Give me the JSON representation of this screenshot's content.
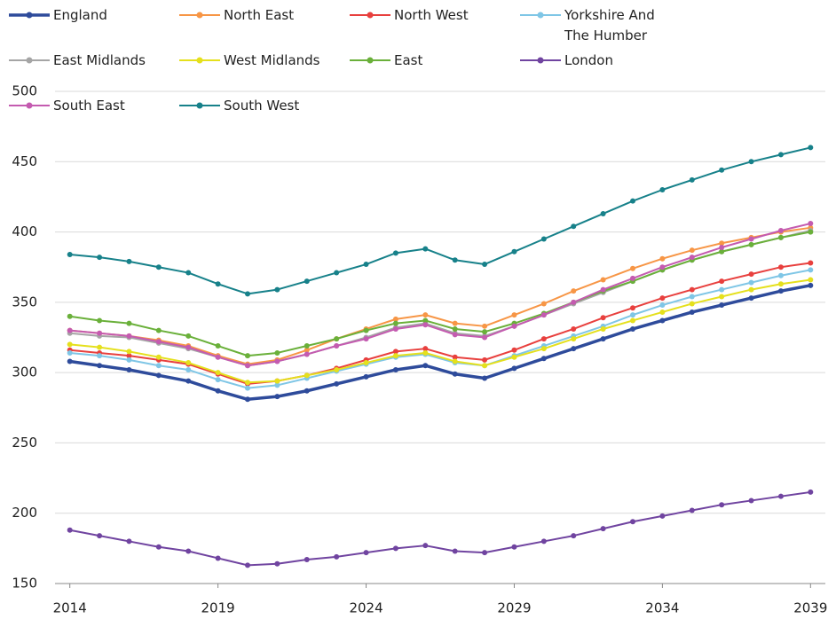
{
  "chart_data": {
    "type": "line",
    "x": [
      2014,
      2015,
      2016,
      2017,
      2018,
      2019,
      2020,
      2021,
      2022,
      2023,
      2024,
      2025,
      2026,
      2027,
      2028,
      2029,
      2030,
      2031,
      2032,
      2033,
      2034,
      2035,
      2036,
      2037,
      2038,
      2039
    ],
    "xlim": [
      2013.5,
      2039.5
    ],
    "xticks": [
      2014,
      2019,
      2024,
      2029,
      2034,
      2039
    ],
    "ylim": [
      150,
      500
    ],
    "yticks": [
      150,
      200,
      250,
      300,
      350,
      400,
      450,
      500
    ],
    "grid": true,
    "series": [
      {
        "name": "England",
        "color": "#2e4b9b",
        "values": [
          308,
          305,
          302,
          298,
          294,
          287,
          281,
          283,
          287,
          292,
          297,
          302,
          305,
          299,
          296,
          303,
          310,
          317,
          324,
          331,
          337,
          343,
          348,
          353,
          358,
          362
        ]
      },
      {
        "name": "North East",
        "color": "#f79646",
        "values": [
          330,
          328,
          326,
          323,
          319,
          312,
          306,
          309,
          316,
          324,
          331,
          338,
          341,
          335,
          333,
          341,
          349,
          358,
          366,
          374,
          381,
          387,
          392,
          396,
          400,
          403
        ]
      },
      {
        "name": "North West",
        "color": "#e8403e",
        "values": [
          316,
          314,
          312,
          309,
          306,
          299,
          292,
          294,
          298,
          303,
          309,
          315,
          317,
          311,
          309,
          316,
          324,
          331,
          339,
          346,
          353,
          359,
          365,
          370,
          375,
          378
        ]
      },
      {
        "name": "Yorkshire And The Humber",
        "color": "#7fc6e6",
        "values": [
          314,
          312,
          309,
          305,
          302,
          295,
          289,
          291,
          296,
          301,
          306,
          311,
          313,
          307,
          305,
          312,
          319,
          326,
          333,
          341,
          348,
          354,
          359,
          364,
          369,
          373
        ]
      },
      {
        "name": "East Midlands",
        "color": "#a5a5a5",
        "values": [
          328,
          326,
          325,
          321,
          317,
          311,
          305,
          308,
          313,
          319,
          325,
          332,
          335,
          328,
          326,
          333,
          341,
          349,
          357,
          365,
          373,
          380,
          386,
          391,
          396,
          401
        ]
      },
      {
        "name": "West Midlands",
        "color": "#e5e01d",
        "values": [
          320,
          318,
          315,
          311,
          307,
          300,
          293,
          294,
          298,
          302,
          307,
          312,
          314,
          308,
          305,
          311,
          317,
          324,
          331,
          337,
          343,
          349,
          354,
          359,
          363,
          366
        ]
      },
      {
        "name": "East",
        "color": "#6ab03a",
        "values": [
          340,
          337,
          335,
          330,
          326,
          319,
          312,
          314,
          319,
          324,
          330,
          335,
          337,
          331,
          329,
          335,
          342,
          350,
          358,
          365,
          373,
          380,
          386,
          391,
          396,
          400
        ]
      },
      {
        "name": "London",
        "color": "#7044a0",
        "values": [
          188,
          184,
          180,
          176,
          173,
          168,
          163,
          164,
          167,
          169,
          172,
          175,
          177,
          173,
          172,
          176,
          180,
          184,
          189,
          194,
          198,
          202,
          206,
          209,
          212,
          215
        ]
      },
      {
        "name": "South East",
        "color": "#c45bb0",
        "values": [
          330,
          328,
          326,
          322,
          318,
          311,
          305,
          308,
          313,
          319,
          324,
          331,
          334,
          327,
          325,
          333,
          341,
          350,
          359,
          367,
          375,
          382,
          389,
          395,
          401,
          406
        ]
      },
      {
        "name": "South West",
        "color": "#17818a",
        "values": [
          384,
          382,
          379,
          375,
          371,
          363,
          356,
          359,
          365,
          371,
          377,
          385,
          388,
          380,
          377,
          386,
          395,
          404,
          413,
          422,
          430,
          437,
          444,
          450,
          455,
          460
        ]
      }
    ]
  }
}
